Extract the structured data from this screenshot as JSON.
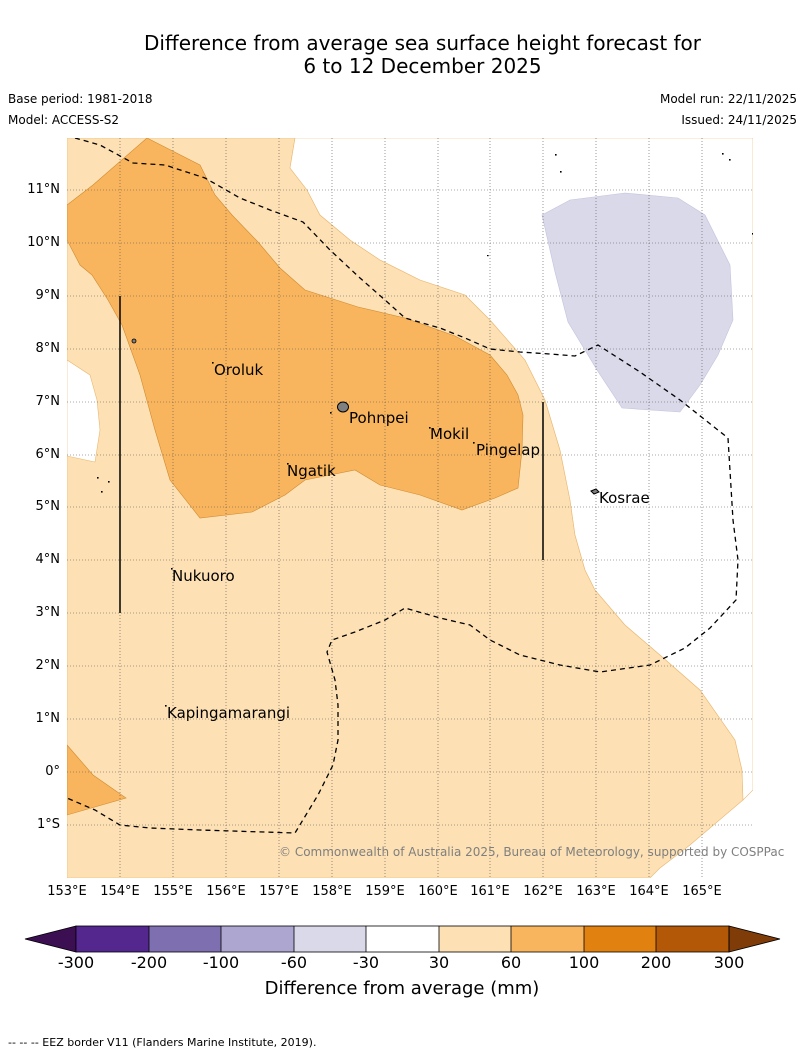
{
  "title": {
    "line1": "Difference from average sea surface height forecast for",
    "line2": "6 to 12 December 2025"
  },
  "meta": {
    "base_period": "Base period: 1981-2018",
    "model": "Model: ACCESS-S2",
    "model_run": "Model run: 22/11/2025",
    "issued": "Issued: 24/11/2025"
  },
  "axes": {
    "latitude_labels": [
      "11°N",
      "10°N",
      "9°N",
      "8°N",
      "7°N",
      "6°N",
      "5°N",
      "4°N",
      "3°N",
      "2°N",
      "1°N",
      "0°",
      "1°S"
    ],
    "longitude_labels": [
      "153°E",
      "154°E",
      "155°E",
      "156°E",
      "157°E",
      "158°E",
      "159°E",
      "160°E",
      "161°E",
      "162°E",
      "163°E",
      "164°E",
      "165°E"
    ]
  },
  "places": {
    "oroluk": "Oroluk",
    "pohnpei": "Pohnpei",
    "mokil": "Mokil",
    "pingelap": "Pingelap",
    "ngatik": "Ngatik",
    "kosrae": "Kosrae",
    "nukuoro": "Nukuoro",
    "kapingamarangi": "Kapingamarangi"
  },
  "copyright": "© Commonwealth of Australia 2025, Bureau of Meteorology, supported by COSPPac",
  "colorbar": {
    "ticks": [
      "-300",
      "-200",
      "-100",
      "-60",
      "-30",
      "30",
      "60",
      "100",
      "200",
      "300"
    ],
    "colors": [
      "#3b0f52",
      "#54278f",
      "#7e6fb0",
      "#aca6d0",
      "#d9d9ea",
      "#ffffff",
      "#fde0b3",
      "#f9b55e",
      "#e1810f",
      "#b35806",
      "#7f3b08"
    ],
    "label": "Difference from average (mm)"
  },
  "footer": "--  --  -- EEZ border V11 (Flanders Marine Institute, 2019)."
}
